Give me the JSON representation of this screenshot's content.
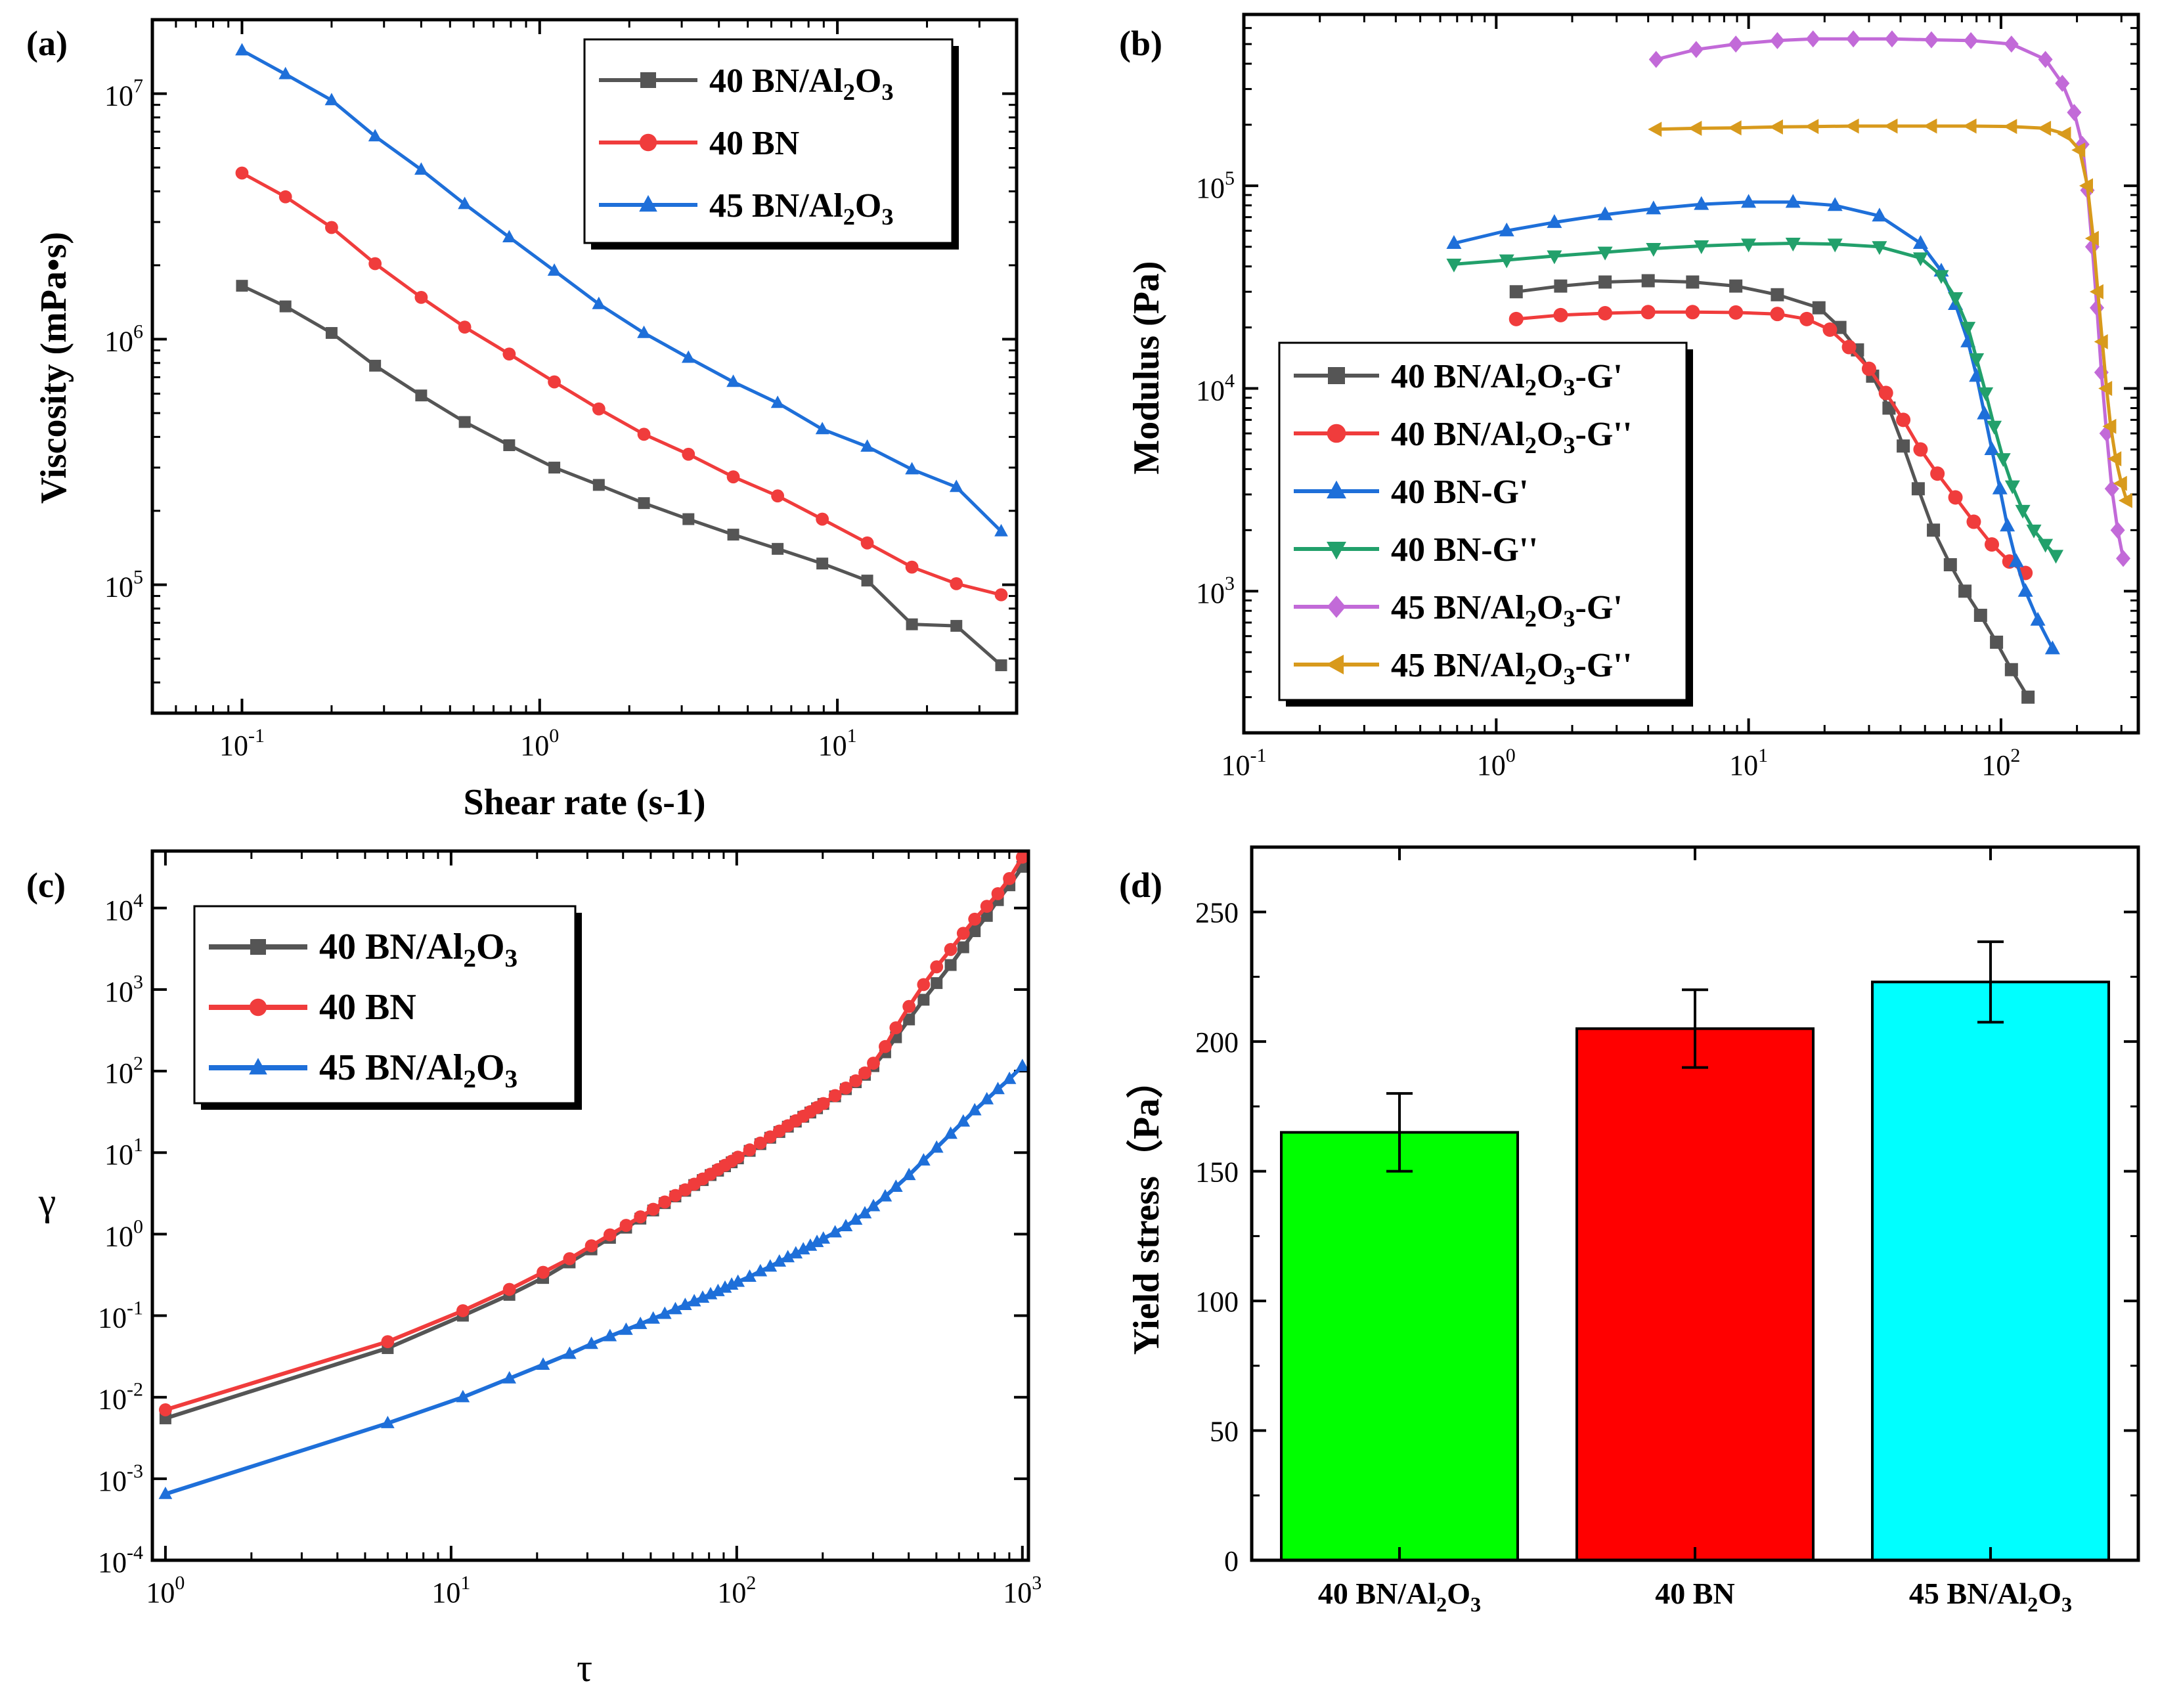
{
  "chart_data": [
    {
      "panel": "(a)",
      "type": "line",
      "xscale": "log",
      "yscale": "log",
      "xlabel": "Shear rate (s-1)",
      "ylabel": "Viscosity (mPa•s)",
      "xlim": [
        0.05,
        40
      ],
      "ylim": [
        30000,
        20000000
      ],
      "x_ticks": [
        {
          "base": "10",
          "exp": "-1"
        },
        {
          "base": "10",
          "exp": "0"
        },
        {
          "base": "10",
          "exp": "1"
        }
      ],
      "y_ticks": [
        {
          "base": "10",
          "exp": "5"
        },
        {
          "base": "10",
          "exp": "6"
        },
        {
          "base": "10",
          "exp": "7"
        }
      ],
      "legend_position": "top-right",
      "series": [
        {
          "name": "40 BN/Al2O3",
          "label": {
            "a": "40 BN/Al",
            "b": "2",
            "c": "O",
            "d": "3",
            "e": ""
          },
          "color": "#555555",
          "marker": "square",
          "x": [
            0.1,
            0.14,
            0.2,
            0.28,
            0.4,
            0.56,
            0.79,
            1.12,
            1.58,
            2.24,
            3.16,
            4.47,
            6.3,
            8.9,
            12.6,
            17.8,
            25.1,
            35.5
          ],
          "y": [
            1650000,
            1360000,
            1060000,
            780000,
            590000,
            460000,
            370000,
            300000,
            255000,
            215000,
            185000,
            160000,
            140000,
            122000,
            104000,
            69000,
            68000,
            47000
          ]
        },
        {
          "name": "40 BN",
          "label": {
            "a": "40 BN",
            "b": "",
            "c": "",
            "d": "",
            "e": ""
          },
          "color": "#f03c3c",
          "marker": "circle",
          "x": [
            0.1,
            0.14,
            0.2,
            0.28,
            0.4,
            0.56,
            0.79,
            1.12,
            1.58,
            2.24,
            3.16,
            4.47,
            6.3,
            8.9,
            12.6,
            17.8,
            25.1,
            35.5
          ],
          "y": [
            4750000,
            3800000,
            2850000,
            2030000,
            1480000,
            1120000,
            870000,
            670000,
            520000,
            410000,
            340000,
            275000,
            230000,
            185000,
            148000,
            118000,
            101000,
            91000
          ]
        },
        {
          "name": "45 BN/Al2O3",
          "label": {
            "a": "45 BN/Al",
            "b": "2",
            "c": "O",
            "d": "3",
            "e": ""
          },
          "color": "#1e6fd9",
          "marker": "triangle-up",
          "x": [
            0.1,
            0.14,
            0.2,
            0.28,
            0.4,
            0.56,
            0.79,
            1.12,
            1.58,
            2.24,
            3.16,
            4.47,
            6.3,
            8.9,
            12.6,
            17.8,
            25.1,
            35.5
          ],
          "y": [
            15000000,
            12000000,
            9400000,
            6700000,
            4900000,
            3550000,
            2600000,
            1900000,
            1390000,
            1060000,
            840000,
            670000,
            550000,
            430000,
            365000,
            295000,
            250000,
            165000
          ]
        }
      ]
    },
    {
      "panel": "(b)",
      "type": "line",
      "xscale": "log",
      "yscale": "log",
      "xlabel": "",
      "ylabel": "Modulus  (Pa)",
      "xlim": [
        0.1,
        350
      ],
      "ylim": [
        200,
        700000
      ],
      "x_ticks": [
        {
          "base": "10",
          "exp": "-1"
        },
        {
          "base": "10",
          "exp": "0"
        },
        {
          "base": "10",
          "exp": "1"
        },
        {
          "base": "10",
          "exp": "2"
        }
      ],
      "y_ticks": [
        {
          "base": "10",
          "exp": "3"
        },
        {
          "base": "10",
          "exp": "4"
        },
        {
          "base": "10",
          "exp": "5"
        }
      ],
      "legend_position": "bottom-left",
      "series": [
        {
          "name": "40 BN/Al2O3-G'",
          "label": {
            "a": "40 BN/Al",
            "b": "2",
            "c": "O",
            "d": "3",
            "e": "-G'"
          },
          "color": "#555555",
          "marker": "square",
          "x": [
            1.2,
            1.8,
            2.7,
            4.0,
            6.0,
            8.9,
            13,
            19,
            23,
            27,
            31,
            36,
            41,
            47,
            54,
            63,
            72,
            83,
            96,
            110,
            128
          ],
          "y": [
            30000,
            32000,
            33500,
            34000,
            33500,
            32000,
            29000,
            25000,
            20000,
            15500,
            11500,
            8000,
            5200,
            3200,
            2000,
            1350,
            1000,
            760,
            560,
            410,
            300
          ]
        },
        {
          "name": "40 BN/Al2O3-G''",
          "label": {
            "a": "40 BN/Al",
            "b": "2",
            "c": "O",
            "d": "3",
            "e": "-G''"
          },
          "color": "#f03c3c",
          "marker": "circle",
          "x": [
            1.2,
            1.8,
            2.7,
            4.0,
            6.0,
            8.9,
            13,
            17,
            21,
            25,
            30,
            35,
            41,
            48,
            56,
            66,
            78,
            92,
            108,
            125
          ],
          "y": [
            22000,
            23000,
            23500,
            23800,
            23800,
            23700,
            23300,
            22000,
            19500,
            16000,
            12500,
            9500,
            7000,
            5000,
            3800,
            2900,
            2200,
            1700,
            1400,
            1230
          ]
        },
        {
          "name": "40 BN-G'",
          "label": {
            "a": "40 BN-G'",
            "b": "",
            "c": "",
            "d": "",
            "e": ""
          },
          "color": "#1e6fd9",
          "marker": "triangle-up",
          "x": [
            0.68,
            1.1,
            1.7,
            2.7,
            4.2,
            6.5,
            10,
            15,
            22,
            33,
            48,
            58,
            66,
            74,
            80,
            86,
            92,
            99,
            106,
            115,
            125,
            140,
            160
          ],
          "y": [
            52000,
            60000,
            66000,
            72000,
            77000,
            81000,
            83000,
            83000,
            80000,
            71000,
            52000,
            38000,
            26000,
            17000,
            11500,
            7500,
            5000,
            3200,
            2100,
            1400,
            1000,
            720,
            520
          ]
        },
        {
          "name": "40 BN-G''",
          "label": {
            "a": "40 BN-G''",
            "b": "",
            "c": "",
            "d": "",
            "e": ""
          },
          "color": "#22a06b",
          "marker": "triangle-down",
          "x": [
            0.68,
            1.1,
            1.7,
            2.7,
            4.2,
            6.5,
            10,
            15,
            22,
            33,
            48,
            58,
            66,
            74,
            80,
            87,
            94,
            102,
            111,
            122,
            135,
            150,
            165
          ],
          "y": [
            41000,
            43000,
            45000,
            47000,
            49000,
            50500,
            51500,
            52000,
            51500,
            50000,
            44000,
            36000,
            28000,
            20000,
            14000,
            9500,
            6500,
            4500,
            3300,
            2500,
            2000,
            1700,
            1500
          ]
        },
        {
          "name": "45 BN/Al2O3-G'",
          "label": {
            "a": "45 BN/Al",
            "b": "2",
            "c": "O",
            "d": "3",
            "e": "-G'"
          },
          "color": "#c26ad8",
          "marker": "diamond",
          "x": [
            4.3,
            6.2,
            8.9,
            13,
            18,
            26,
            37,
            53,
            76,
            110,
            150,
            175,
            195,
            210,
            220,
            230,
            240,
            250,
            262,
            275,
            290,
            305
          ],
          "y": [
            420000,
            470000,
            500000,
            520000,
            530000,
            530000,
            530000,
            525000,
            520000,
            500000,
            420000,
            320000,
            230000,
            160000,
            95000,
            50000,
            25000,
            12000,
            6000,
            3200,
            2000,
            1450
          ]
        },
        {
          "name": "45 BN/Al2O3-G''",
          "label": {
            "a": "45 BN/Al",
            "b": "2",
            "c": "O",
            "d": "3",
            "e": "-G''"
          },
          "color": "#d89a1c",
          "marker": "triangle-left",
          "x": [
            4.3,
            6.2,
            8.9,
            13,
            18,
            26,
            37,
            53,
            76,
            110,
            150,
            180,
            205,
            220,
            232,
            242,
            252,
            262,
            272,
            285,
            300,
            315
          ],
          "y": [
            190000,
            192000,
            193000,
            195000,
            196000,
            197000,
            197000,
            197000,
            197000,
            196000,
            192000,
            180000,
            150000,
            100000,
            55000,
            30000,
            17000,
            10000,
            6500,
            4500,
            3400,
            2800
          ]
        }
      ]
    },
    {
      "panel": "(c)",
      "type": "line",
      "xscale": "log",
      "yscale": "log",
      "xlabel": "τ",
      "ylabel": "γ",
      "xlim": [
        0.9,
        1050
      ],
      "ylim": [
        0.0001,
        50000
      ],
      "x_ticks": [
        {
          "base": "10",
          "exp": "0"
        },
        {
          "base": "10",
          "exp": "1"
        },
        {
          "base": "10",
          "exp": "2"
        },
        {
          "base": "10",
          "exp": "3"
        }
      ],
      "y_ticks": [
        {
          "base": "10",
          "exp": "-4"
        },
        {
          "base": "10",
          "exp": "-3"
        },
        {
          "base": "10",
          "exp": "-2"
        },
        {
          "base": "10",
          "exp": "-1"
        },
        {
          "base": "10",
          "exp": "0"
        },
        {
          "base": "10",
          "exp": "1"
        },
        {
          "base": "10",
          "exp": "2"
        },
        {
          "base": "10",
          "exp": "3"
        },
        {
          "base": "10",
          "exp": "4"
        }
      ],
      "legend_position": "top-left",
      "series": [
        {
          "name": "40 BN/Al2O3",
          "label": {
            "a": "40 BN/Al",
            "b": "2",
            "c": "O",
            "d": "3",
            "e": ""
          },
          "color": "#555555",
          "marker": "square",
          "x": [
            1,
            6,
            11,
            16,
            21,
            26,
            31,
            36,
            41,
            46,
            51,
            56,
            61,
            66,
            71,
            76,
            81,
            86,
            91,
            96,
            101,
            111,
            121,
            131,
            141,
            151,
            161,
            171,
            181,
            191,
            201,
            221,
            241,
            261,
            281,
            301,
            331,
            361,
            401,
            451,
            501,
            561,
            621,
            681,
            751,
            821,
            901,
            1000
          ],
          "y": [
            0.0055,
            0.04,
            0.1,
            0.18,
            0.29,
            0.45,
            0.65,
            0.9,
            1.2,
            1.55,
            1.95,
            2.4,
            2.9,
            3.4,
            4.0,
            4.6,
            5.3,
            6.0,
            6.8,
            7.6,
            8.5,
            10.5,
            12.7,
            15.2,
            17.9,
            20.8,
            24,
            27.5,
            31,
            35,
            39.5,
            49,
            60,
            73,
            90,
            115,
            170,
            260,
            430,
            750,
            1200,
            2000,
            3300,
            5200,
            8000,
            12500,
            19000,
            32000
          ]
        },
        {
          "name": "40 BN",
          "label": {
            "a": "40 BN",
            "b": "",
            "c": "",
            "d": "",
            "e": ""
          },
          "color": "#f03c3c",
          "marker": "circle",
          "x": [
            1,
            6,
            11,
            16,
            21,
            26,
            31,
            36,
            41,
            46,
            51,
            56,
            61,
            66,
            71,
            76,
            81,
            86,
            91,
            96,
            101,
            111,
            121,
            131,
            141,
            151,
            161,
            171,
            181,
            191,
            201,
            221,
            241,
            261,
            281,
            301,
            331,
            361,
            401,
            451,
            501,
            561,
            621,
            681,
            751,
            821,
            901,
            1000
          ],
          "y": [
            0.007,
            0.048,
            0.115,
            0.21,
            0.34,
            0.5,
            0.72,
            0.98,
            1.28,
            1.63,
            2.02,
            2.48,
            2.98,
            3.5,
            4.1,
            4.75,
            5.45,
            6.2,
            7.0,
            7.85,
            8.8,
            10.8,
            13.1,
            15.6,
            18.4,
            21.4,
            24.6,
            28,
            31.8,
            35.8,
            40,
            50,
            62,
            76,
            95,
            125,
            200,
            340,
            620,
            1150,
            1900,
            3100,
            4900,
            7300,
            10500,
            15000,
            23000,
            42000
          ]
        },
        {
          "name": "45 BN/Al2O3",
          "label": {
            "a": "45 BN/Al",
            "b": "2",
            "c": "O",
            "d": "3",
            "e": ""
          },
          "color": "#1e6fd9",
          "marker": "triangle-up",
          "x": [
            1,
            6,
            11,
            16,
            21,
            26,
            31,
            36,
            41,
            46,
            51,
            56,
            61,
            66,
            71,
            76,
            81,
            86,
            91,
            96,
            101,
            111,
            121,
            131,
            141,
            151,
            161,
            171,
            181,
            191,
            201,
            221,
            241,
            261,
            281,
            301,
            331,
            361,
            401,
            451,
            501,
            561,
            621,
            681,
            751,
            821,
            901,
            1000
          ],
          "y": [
            0.00065,
            0.0048,
            0.01,
            0.017,
            0.025,
            0.034,
            0.045,
            0.056,
            0.067,
            0.079,
            0.092,
            0.105,
            0.12,
            0.135,
            0.15,
            0.166,
            0.183,
            0.2,
            0.22,
            0.24,
            0.26,
            0.3,
            0.35,
            0.4,
            0.46,
            0.52,
            0.58,
            0.65,
            0.72,
            0.8,
            0.88,
            1.05,
            1.25,
            1.5,
            1.8,
            2.2,
            2.9,
            3.8,
            5.3,
            8,
            11.5,
            17,
            24,
            33,
            45,
            60,
            80,
            115
          ]
        }
      ]
    },
    {
      "panel": "(d)",
      "type": "bar",
      "categories": [
        {
          "a": "40 BN/Al",
          "b": "2",
          "c": "O",
          "d": "3"
        },
        {
          "a": "40 BN",
          "b": "",
          "c": "",
          "d": ""
        },
        {
          "a": "45 BN/Al",
          "b": "2",
          "c": "O",
          "d": "3"
        }
      ],
      "values": [
        165,
        205,
        223
      ],
      "errors": [
        15,
        15,
        15.5
      ],
      "colors": [
        "#00ff00",
        "#ff0000",
        "#00ffff"
      ],
      "xlabel": "",
      "ylabel": "Yield stress（Pa）",
      "ylim": [
        0,
        275
      ],
      "y_ticks": [
        "0",
        "50",
        "100",
        "150",
        "200",
        "250"
      ]
    }
  ]
}
